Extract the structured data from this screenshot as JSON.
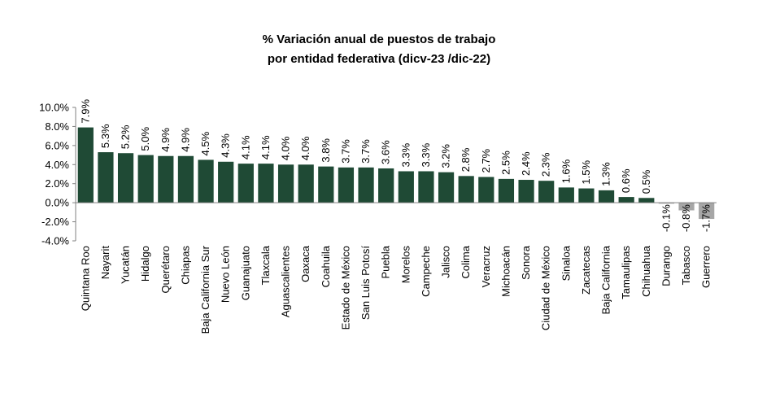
{
  "chart_data": {
    "type": "bar",
    "title_line1": "% Variación anual de puestos de trabajo",
    "title_line2": "por entidad federativa (dicv-23 /dic-22)",
    "xlabel": "",
    "ylabel": "",
    "ylim": [
      -4.0,
      10.0
    ],
    "yticks": [
      "10.0%",
      "8.0%",
      "6.0%",
      "4.0%",
      "2.0%",
      "0.0%",
      "-2.0%",
      "-4.0%"
    ],
    "ytick_values": [
      10,
      8,
      6,
      4,
      2,
      0,
      -2,
      -4
    ],
    "grid": false,
    "legend": "none",
    "colors": {
      "positive": "#1f4a35",
      "negative": "#a6a6a6",
      "axis": "#808080"
    },
    "categories": [
      "Quintana Roo",
      "Nayarit",
      "Yucatán",
      "Hidalgo",
      "Querétaro",
      "Chiapas",
      "Baja California Sur",
      "Nuevo León",
      "Guanajuato",
      "Tlaxcala",
      "Aguascalientes",
      "Oaxaca",
      "Coahuila",
      "Estado de México",
      "San Luis Potosí",
      "Puebla",
      "Morelos",
      "Campeche",
      "Jalisco",
      "Colima",
      "Veracruz",
      "Michoacán",
      "Sonora",
      "Ciudad de México",
      "Sinaloa",
      "Zacatecas",
      "Baja California",
      "Tamaulipas",
      "Chihuahua",
      "Durango",
      "Tabasco",
      "Guerrero"
    ],
    "values": [
      7.9,
      5.3,
      5.2,
      5.0,
      4.9,
      4.9,
      4.5,
      4.3,
      4.1,
      4.1,
      4.0,
      4.0,
      3.8,
      3.7,
      3.7,
      3.6,
      3.3,
      3.3,
      3.2,
      2.8,
      2.7,
      2.5,
      2.4,
      2.3,
      1.6,
      1.5,
      1.3,
      0.6,
      0.5,
      -0.1,
      -0.8,
      -1.7
    ],
    "value_labels": [
      "7.9%",
      "5.3%",
      "5.2%",
      "5.0%",
      "4.9%",
      "4.9%",
      "4.5%",
      "4.3%",
      "4.1%",
      "4.1%",
      "4.0%",
      "4.0%",
      "3.8%",
      "3.7%",
      "3.7%",
      "3.6%",
      "3.3%",
      "3.3%",
      "3.2%",
      "2.8%",
      "2.7%",
      "2.5%",
      "2.4%",
      "2.3%",
      "1.6%",
      "1.5%",
      "1.3%",
      "0.6%",
      "0.5%",
      "-0.1%",
      "-0.8%",
      "-1.7%"
    ]
  }
}
